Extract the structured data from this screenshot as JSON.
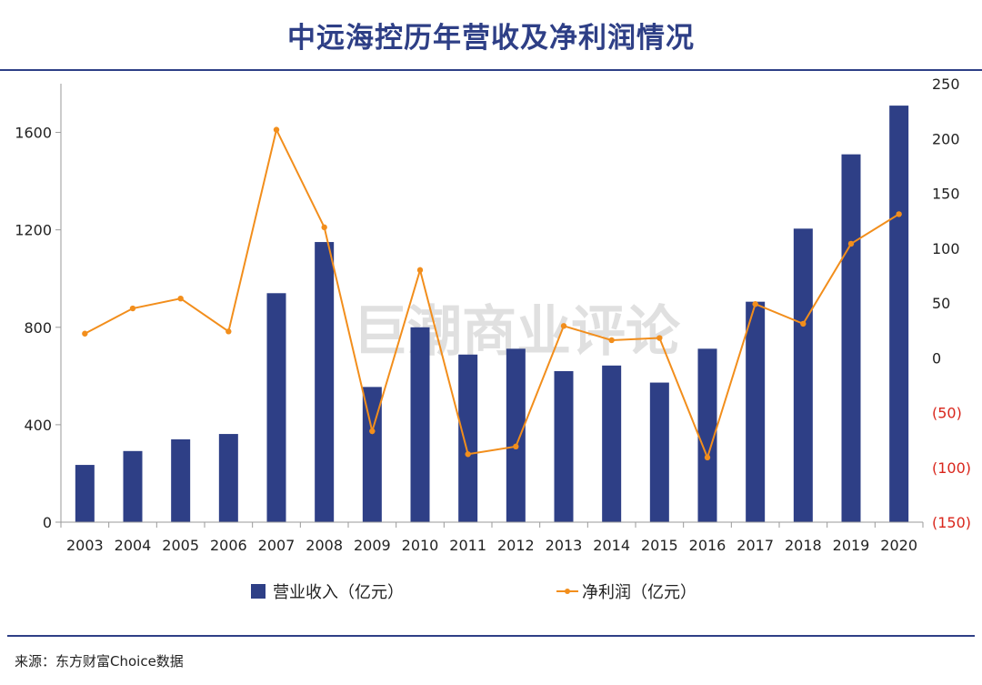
{
  "title": "中远海控历年营收及净利润情况",
  "source": "来源：东方财富Choice数据",
  "watermark": "巨潮商业评论",
  "colors": {
    "bar": "#2e3f86",
    "line": "#f28e1c",
    "negative_tick": "#d9261c",
    "title": "#2e3f86"
  },
  "chart_data": {
    "type": "bar",
    "categories": [
      "2003",
      "2004",
      "2005",
      "2006",
      "2007",
      "2008",
      "2009",
      "2010",
      "2011",
      "2012",
      "2013",
      "2014",
      "2015",
      "2016",
      "2017",
      "2018",
      "2019",
      "2020"
    ],
    "series": [
      {
        "name": "营业收入（亿元）",
        "type": "bar",
        "axis": "left",
        "values": [
          235,
          292,
          340,
          362,
          940,
          1150,
          555,
          800,
          688,
          712,
          620,
          643,
          573,
          712,
          905,
          1205,
          1510,
          1710
        ]
      },
      {
        "name": "净利润（亿元）",
        "type": "line",
        "axis": "right",
        "values": [
          22,
          45,
          54,
          24,
          208,
          119,
          -67,
          80,
          -88,
          -81,
          29,
          16,
          18,
          -91,
          49,
          31,
          104,
          131
        ]
      }
    ],
    "left_axis": {
      "min": 0,
      "max": 1800,
      "ticks": [
        "0",
        "400",
        "800",
        "1200",
        "1600"
      ],
      "tick_values": [
        0,
        400,
        800,
        1200,
        1600
      ]
    },
    "right_axis": {
      "min": -150,
      "max": 250,
      "ticks": [
        "(150)",
        "(100)",
        "(50)",
        "0",
        "50",
        "100",
        "150",
        "200",
        "250"
      ],
      "tick_values": [
        -150,
        -100,
        -50,
        0,
        50,
        100,
        150,
        200,
        250
      ]
    },
    "legend": {
      "placement": "bottom",
      "items": [
        {
          "label": "营业收入（亿元）",
          "kind": "bar"
        },
        {
          "label": "净利润（亿元）",
          "kind": "line"
        }
      ]
    },
    "grid": false
  }
}
